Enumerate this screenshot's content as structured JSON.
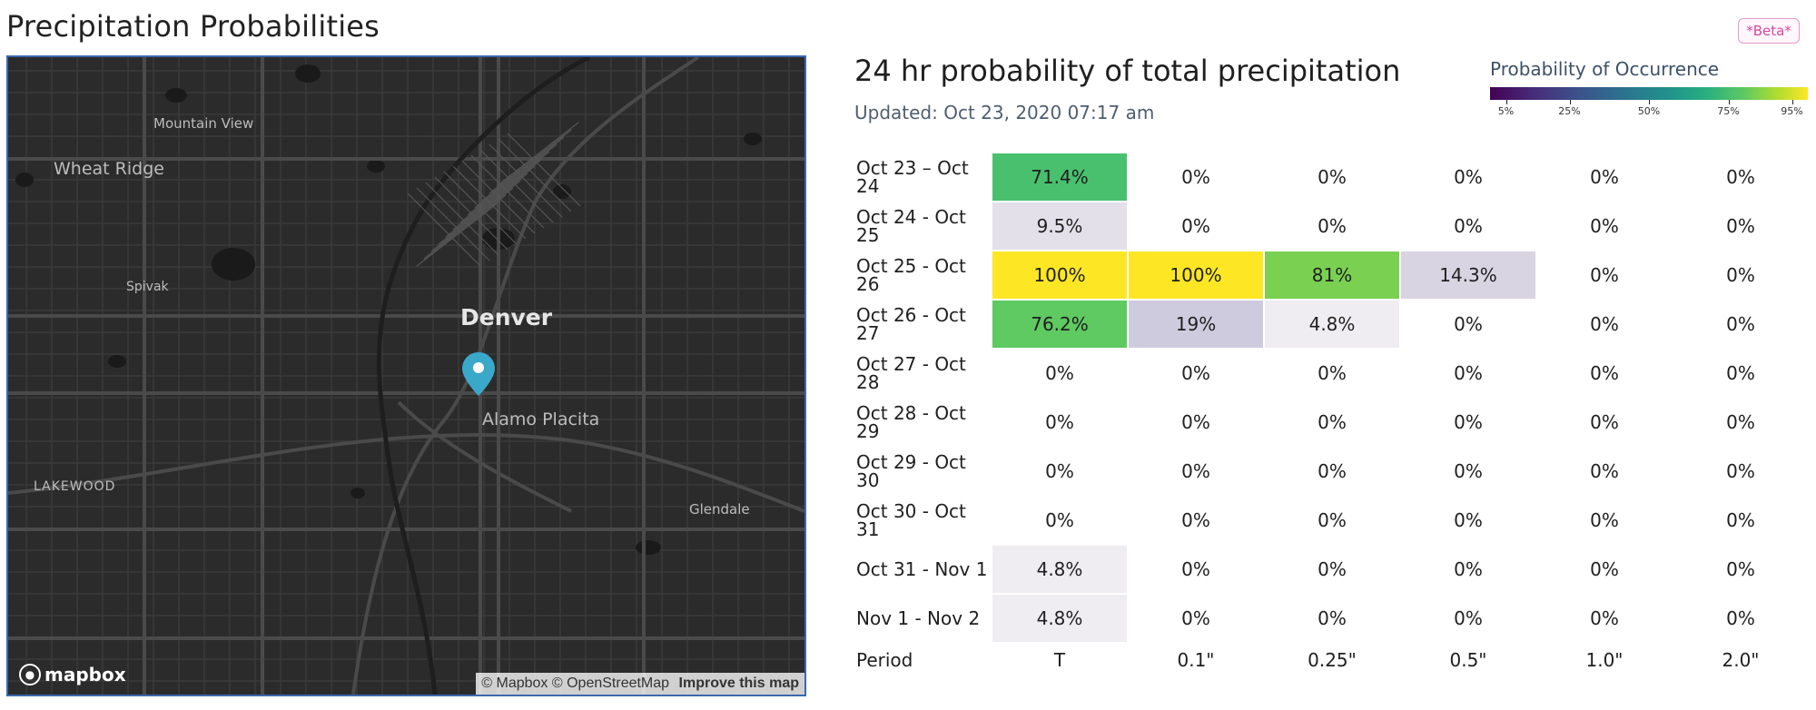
{
  "page_title": "Precipitation Probabilities",
  "beta_badge": "*Beta*",
  "map": {
    "labels": {
      "wheat_ridge": "Wheat Ridge",
      "mountain_view": "Mountain View",
      "spivak": "Spivak",
      "denver": "Denver",
      "alamo_placita": "Alamo Placita",
      "lakewood": "LAKEWOOD",
      "glendale": "Glendale"
    },
    "logo": "mapbox",
    "attribution": "© Mapbox © OpenStreetMap",
    "improve_link": "Improve this map",
    "colors": {
      "background": "#2b2b2b",
      "pin": "#3aa8c9",
      "border": "#3b68b0"
    }
  },
  "panel": {
    "title": "24 hr probability of total precipitation",
    "updated": "Updated: Oct 23, 2020 07:17 am"
  },
  "legend": {
    "title": "Probability of Occurrence",
    "ticks": [
      "5%",
      "25%",
      "50%",
      "75%",
      "95%"
    ]
  },
  "table": {
    "columns": [
      "T",
      "0.1\"",
      "0.25\"",
      "0.5\"",
      "1.0\"",
      "2.0\""
    ],
    "footer_label": "Period",
    "rows": [
      {
        "period": "Oct 23 – Oct 24",
        "cells": [
          {
            "text": "71.4%",
            "bg": "#49c06e"
          },
          {
            "text": "0%",
            "bg": ""
          },
          {
            "text": "0%",
            "bg": ""
          },
          {
            "text": "0%",
            "bg": ""
          },
          {
            "text": "0%",
            "bg": ""
          },
          {
            "text": "0%",
            "bg": ""
          }
        ]
      },
      {
        "period": "Oct 24 - Oct 25",
        "cells": [
          {
            "text": "9.5%",
            "bg": "#e4e0ea"
          },
          {
            "text": "0%",
            "bg": ""
          },
          {
            "text": "0%",
            "bg": ""
          },
          {
            "text": "0%",
            "bg": ""
          },
          {
            "text": "0%",
            "bg": ""
          },
          {
            "text": "0%",
            "bg": ""
          }
        ]
      },
      {
        "period": "Oct 25 - Oct 26",
        "cells": [
          {
            "text": "100%",
            "bg": "#fde725"
          },
          {
            "text": "100%",
            "bg": "#fde725"
          },
          {
            "text": "81%",
            "bg": "#7ad151"
          },
          {
            "text": "14.3%",
            "bg": "#d8d4e2"
          },
          {
            "text": "0%",
            "bg": ""
          },
          {
            "text": "0%",
            "bg": ""
          }
        ]
      },
      {
        "period": "Oct 26 - Oct 27",
        "cells": [
          {
            "text": "76.2%",
            "bg": "#5fc962"
          },
          {
            "text": "19%",
            "bg": "#cfcbde"
          },
          {
            "text": "4.8%",
            "bg": "#efedf2"
          },
          {
            "text": "0%",
            "bg": ""
          },
          {
            "text": "0%",
            "bg": ""
          },
          {
            "text": "0%",
            "bg": ""
          }
        ]
      },
      {
        "period": "Oct 27 - Oct 28",
        "cells": [
          {
            "text": "0%",
            "bg": ""
          },
          {
            "text": "0%",
            "bg": ""
          },
          {
            "text": "0%",
            "bg": ""
          },
          {
            "text": "0%",
            "bg": ""
          },
          {
            "text": "0%",
            "bg": ""
          },
          {
            "text": "0%",
            "bg": ""
          }
        ]
      },
      {
        "period": "Oct 28 - Oct 29",
        "cells": [
          {
            "text": "0%",
            "bg": ""
          },
          {
            "text": "0%",
            "bg": ""
          },
          {
            "text": "0%",
            "bg": ""
          },
          {
            "text": "0%",
            "bg": ""
          },
          {
            "text": "0%",
            "bg": ""
          },
          {
            "text": "0%",
            "bg": ""
          }
        ]
      },
      {
        "period": "Oct 29 - Oct 30",
        "cells": [
          {
            "text": "0%",
            "bg": ""
          },
          {
            "text": "0%",
            "bg": ""
          },
          {
            "text": "0%",
            "bg": ""
          },
          {
            "text": "0%",
            "bg": ""
          },
          {
            "text": "0%",
            "bg": ""
          },
          {
            "text": "0%",
            "bg": ""
          }
        ]
      },
      {
        "period": "Oct 30 - Oct 31",
        "cells": [
          {
            "text": "0%",
            "bg": ""
          },
          {
            "text": "0%",
            "bg": ""
          },
          {
            "text": "0%",
            "bg": ""
          },
          {
            "text": "0%",
            "bg": ""
          },
          {
            "text": "0%",
            "bg": ""
          },
          {
            "text": "0%",
            "bg": ""
          }
        ]
      },
      {
        "period": "Oct 31 - Nov 1",
        "cells": [
          {
            "text": "4.8%",
            "bg": "#efedf2"
          },
          {
            "text": "0%",
            "bg": ""
          },
          {
            "text": "0%",
            "bg": ""
          },
          {
            "text": "0%",
            "bg": ""
          },
          {
            "text": "0%",
            "bg": ""
          },
          {
            "text": "0%",
            "bg": ""
          }
        ]
      },
      {
        "period": "Nov 1 - Nov 2",
        "cells": [
          {
            "text": "4.8%",
            "bg": "#efedf2"
          },
          {
            "text": "0%",
            "bg": ""
          },
          {
            "text": "0%",
            "bg": ""
          },
          {
            "text": "0%",
            "bg": ""
          },
          {
            "text": "0%",
            "bg": ""
          },
          {
            "text": "0%",
            "bg": ""
          }
        ]
      }
    ]
  }
}
